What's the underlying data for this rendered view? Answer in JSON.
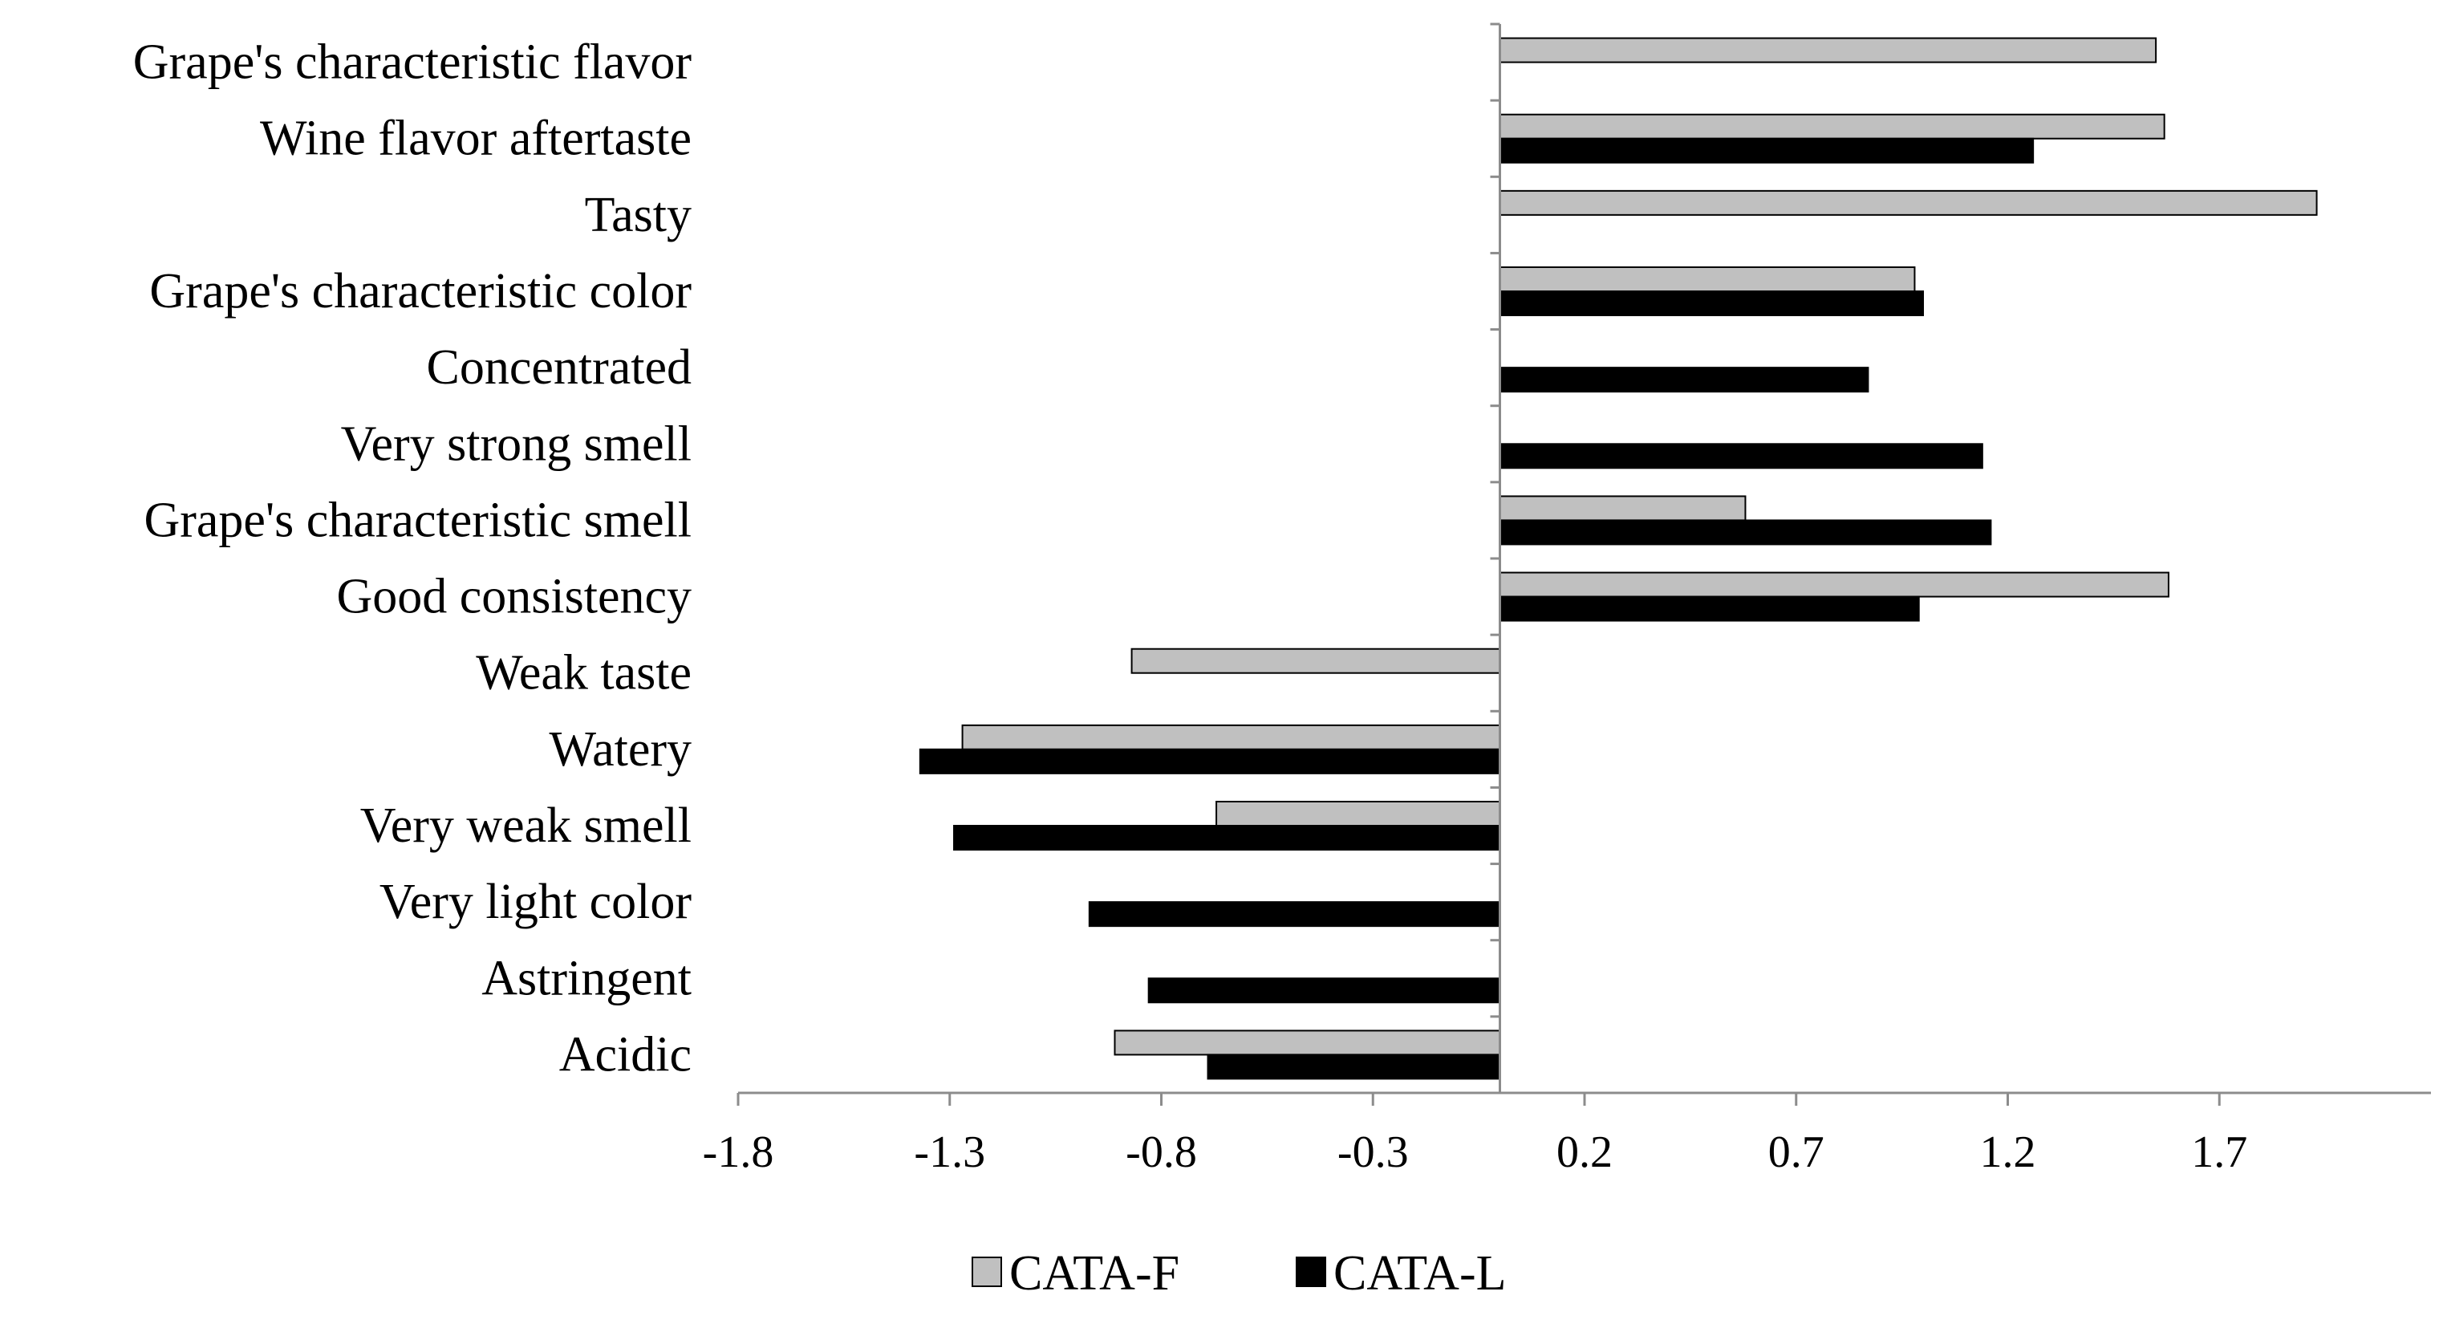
{
  "colors": {
    "CATA-F": "#c0c0c0",
    "CATA-L": "#000000",
    "axis": "#8c8c8c"
  },
  "chart_data": {
    "type": "bar",
    "orientation": "horizontal",
    "title": "",
    "xlabel": "",
    "ylabel": "",
    "categories": [
      "Grape's characteristic flavor",
      "Wine flavor aftertaste",
      "Tasty",
      "Grape's characteristic color",
      "Concentrated",
      "Very strong smell",
      "Grape's characteristic smell",
      "Good consistency",
      "Weak taste",
      "Watery",
      "Very weak smell",
      "Very light color",
      "Astringent",
      "Acidic"
    ],
    "series": [
      {
        "name": "CATA-F",
        "values": [
          1.55,
          1.57,
          1.93,
          0.98,
          null,
          null,
          0.58,
          1.58,
          -0.87,
          -1.27,
          -0.67,
          null,
          null,
          -0.91
        ]
      },
      {
        "name": "CATA-L",
        "values": [
          null,
          1.26,
          null,
          1.0,
          0.87,
          1.14,
          1.16,
          0.99,
          null,
          -1.37,
          -1.29,
          -0.97,
          -0.83,
          -0.69
        ]
      }
    ],
    "xlim": [
      -1.8,
      2.2
    ],
    "xticks": [
      "-1.8",
      "-1.3",
      "-0.8",
      "-0.3",
      "0.2",
      "0.7",
      "1.2",
      "1.7"
    ],
    "xtick_values": [
      -1.8,
      -1.3,
      -0.8,
      -0.3,
      0.2,
      0.7,
      1.2,
      1.7
    ],
    "grid": false,
    "legend_position": "bottom-center",
    "legend": [
      "CATA-F",
      "CATA-L"
    ]
  }
}
